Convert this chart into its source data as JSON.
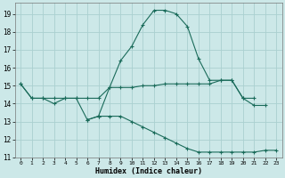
{
  "xlabel": "Humidex (Indice chaleur)",
  "background_color": "#cce8e8",
  "grid_color": "#aad0d0",
  "line_color": "#1a6b5a",
  "xlim": [
    -0.5,
    23.5
  ],
  "ylim": [
    11,
    19.6
  ],
  "yticks": [
    11,
    12,
    13,
    14,
    15,
    16,
    17,
    18,
    19
  ],
  "xticks": [
    0,
    1,
    2,
    3,
    4,
    5,
    6,
    7,
    8,
    9,
    10,
    11,
    12,
    13,
    14,
    15,
    16,
    17,
    18,
    19,
    20,
    21,
    22,
    23
  ],
  "curve1_x": [
    0,
    1,
    2,
    3,
    4,
    5,
    6,
    7,
    8,
    9,
    10,
    11,
    12,
    13,
    14,
    15,
    16,
    17,
    18,
    19,
    20,
    21,
    22
  ],
  "curve1_y": [
    15.1,
    14.3,
    14.3,
    14.0,
    14.3,
    14.3,
    13.1,
    13.3,
    14.9,
    16.4,
    17.2,
    18.4,
    19.2,
    19.2,
    19.0,
    18.3,
    16.5,
    15.3,
    15.3,
    15.3,
    14.3,
    13.9,
    13.9
  ],
  "curve2_x": [
    0,
    1,
    2,
    3,
    4,
    5,
    6,
    7,
    8,
    9,
    10,
    11,
    12,
    13,
    14,
    15,
    16,
    17,
    18,
    19,
    20,
    21
  ],
  "curve2_y": [
    15.1,
    14.3,
    14.3,
    14.3,
    14.3,
    14.3,
    14.3,
    14.3,
    14.9,
    14.9,
    14.9,
    15.0,
    15.0,
    15.1,
    15.1,
    15.1,
    15.1,
    15.1,
    15.3,
    15.3,
    14.3,
    14.3
  ],
  "curve3_x": [
    6,
    7,
    8,
    9,
    10,
    11,
    12,
    13,
    14,
    15,
    16,
    17,
    18,
    19,
    20,
    21,
    22,
    23
  ],
  "curve3_y": [
    13.1,
    13.3,
    13.3,
    13.3,
    13.0,
    12.7,
    12.4,
    12.1,
    11.8,
    11.5,
    11.3,
    11.3,
    11.3,
    11.3,
    11.3,
    11.3,
    11.4,
    11.4
  ]
}
